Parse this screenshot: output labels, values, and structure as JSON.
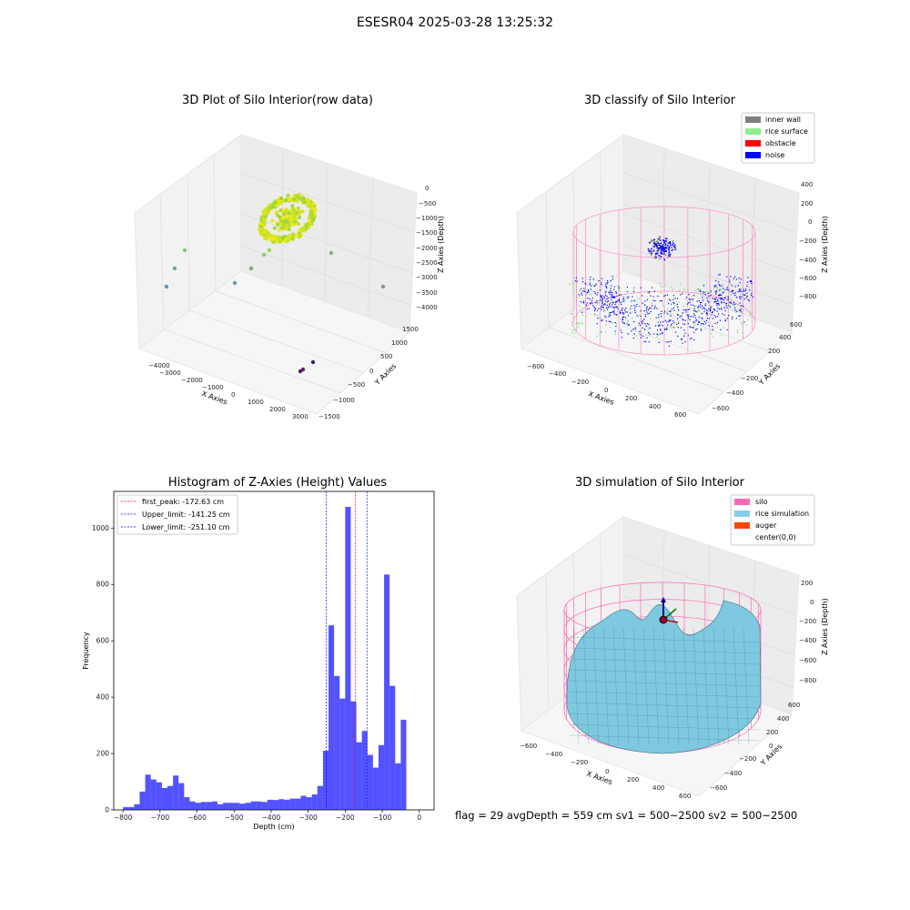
{
  "suptitle": "ESESR04 2025-03-28 13:25:32",
  "footer_text": "flag = 29  avgDepth = 559 cm  sv1 = 500~2500  sv2 = 500~2500",
  "chart_data": [
    {
      "type": "scatter",
      "title": "3D Plot of Silo Interior(row data)",
      "xlabel": "X Axies",
      "ylabel": "Y Axies",
      "zlabel": "Z Axies (Depth)",
      "x_ticks": [
        "−4000",
        "−3000",
        "−2000",
        "−1000",
        "0",
        "1000",
        "2000",
        "3000"
      ],
      "y_ticks": [
        "−1500",
        "−1000",
        "−500",
        "0",
        "500",
        "1000",
        "1500"
      ],
      "z_ticks": [
        "0",
        "−500",
        "−1000",
        "−1500",
        "−2000",
        "−2500",
        "−3000",
        "−3500",
        "−4000"
      ],
      "grid": true
    },
    {
      "type": "scatter",
      "title": "3D classify of Silo Interior",
      "xlabel": "X Axies",
      "ylabel": "Y Axies",
      "zlabel": "Z Axies (Depth)",
      "x_ticks": [
        "−600",
        "−400",
        "−200",
        "0",
        "200",
        "400",
        "600"
      ],
      "y_ticks": [
        "−600",
        "−400",
        "−200",
        "0",
        "200",
        "400",
        "600"
      ],
      "z_ticks": [
        "400",
        "200",
        "0",
        "−200",
        "−400",
        "−600",
        "−800"
      ],
      "legend": [
        {
          "label": "inner wall",
          "color": "#808080"
        },
        {
          "label": "rice surface",
          "color": "#90ee90"
        },
        {
          "label": "obstacle",
          "color": "#ff0000"
        },
        {
          "label": "noise",
          "color": "#0000ff"
        }
      ],
      "legend_position": "top-right",
      "grid": true
    },
    {
      "type": "bar",
      "title": "Histogram of Z-Axies (Height) Values",
      "xlabel": "Depth (cm)",
      "ylabel": "Frequency",
      "xlim": [
        -825,
        40
      ],
      "ylim": [
        0,
        1130
      ],
      "x_ticks": [
        -800,
        -700,
        -600,
        -500,
        -400,
        -300,
        -200,
        -100,
        0
      ],
      "y_ticks": [
        0,
        200,
        400,
        600,
        800,
        1000
      ],
      "bar_color": "#0000ff",
      "bin_width": 15,
      "bins": [
        {
          "x": -800,
          "y": 10
        },
        {
          "x": -785,
          "y": 10
        },
        {
          "x": -770,
          "y": 20
        },
        {
          "x": -755,
          "y": 65
        },
        {
          "x": -740,
          "y": 125
        },
        {
          "x": -725,
          "y": 108
        },
        {
          "x": -710,
          "y": 98
        },
        {
          "x": -695,
          "y": 78
        },
        {
          "x": -680,
          "y": 85
        },
        {
          "x": -665,
          "y": 122
        },
        {
          "x": -650,
          "y": 95
        },
        {
          "x": -635,
          "y": 45
        },
        {
          "x": -620,
          "y": 30
        },
        {
          "x": -605,
          "y": 25
        },
        {
          "x": -590,
          "y": 28
        },
        {
          "x": -575,
          "y": 28
        },
        {
          "x": -560,
          "y": 30
        },
        {
          "x": -545,
          "y": 20
        },
        {
          "x": -530,
          "y": 25
        },
        {
          "x": -515,
          "y": 25
        },
        {
          "x": -500,
          "y": 25
        },
        {
          "x": -485,
          "y": 22
        },
        {
          "x": -470,
          "y": 25
        },
        {
          "x": -455,
          "y": 30
        },
        {
          "x": -440,
          "y": 30
        },
        {
          "x": -425,
          "y": 28
        },
        {
          "x": -410,
          "y": 36
        },
        {
          "x": -395,
          "y": 35
        },
        {
          "x": -380,
          "y": 38
        },
        {
          "x": -365,
          "y": 36
        },
        {
          "x": -350,
          "y": 40
        },
        {
          "x": -335,
          "y": 40
        },
        {
          "x": -320,
          "y": 50
        },
        {
          "x": -305,
          "y": 45
        },
        {
          "x": -290,
          "y": 55
        },
        {
          "x": -275,
          "y": 85
        },
        {
          "x": -260,
          "y": 210
        },
        {
          "x": -245,
          "y": 655
        },
        {
          "x": -230,
          "y": 475
        },
        {
          "x": -215,
          "y": 395
        },
        {
          "x": -200,
          "y": 1075
        },
        {
          "x": -185,
          "y": 385
        },
        {
          "x": -170,
          "y": 240
        },
        {
          "x": -155,
          "y": 280
        },
        {
          "x": -140,
          "y": 195
        },
        {
          "x": -125,
          "y": 150
        },
        {
          "x": -110,
          "y": 230
        },
        {
          "x": -95,
          "y": 835
        },
        {
          "x": -80,
          "y": 440
        },
        {
          "x": -65,
          "y": 165
        },
        {
          "x": -50,
          "y": 320
        }
      ],
      "lines": [
        {
          "label": "first_peak: -172.63 cm",
          "x": -172.63,
          "color": "#ff0000"
        },
        {
          "label": "Upper_limit: -141.25 cm",
          "x": -141.25,
          "color": "#0000ff"
        },
        {
          "label": "Lower_limit: -251.10 cm",
          "x": -251.1,
          "color": "#0000ff"
        }
      ],
      "legend_position": "top-left"
    },
    {
      "type": "surface",
      "title": "3D simulation of Silo Interior",
      "xlabel": "X Axies",
      "ylabel": "Y Axies",
      "zlabel": "Z Axies (Depth)",
      "x_ticks": [
        "−600",
        "−400",
        "−200",
        "0",
        "200",
        "400",
        "600"
      ],
      "y_ticks": [
        "−600",
        "−400",
        "−200",
        "0",
        "200",
        "400",
        "600"
      ],
      "z_ticks": [
        "200",
        "0",
        "−200",
        "−400",
        "−600",
        "−800"
      ],
      "legend": [
        {
          "label": "silo",
          "color": "#ff69b4"
        },
        {
          "label": "rice simulation",
          "color": "#87ceeb"
        },
        {
          "label": "auger",
          "color": "#ff4500"
        },
        {
          "label": "center(0,0)",
          "color": ""
        }
      ],
      "legend_position": "top-right",
      "grid": true
    }
  ]
}
